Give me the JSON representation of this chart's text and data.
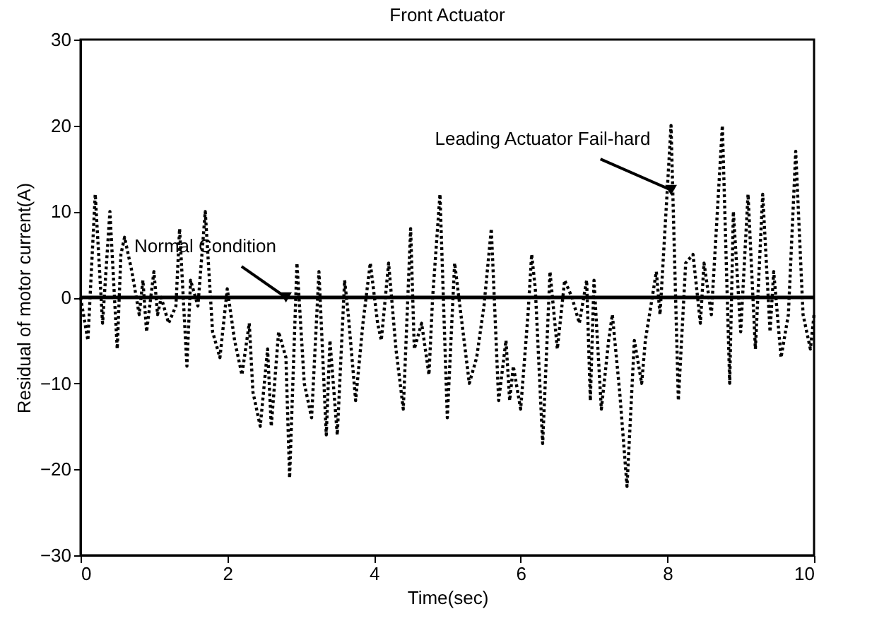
{
  "chart_data": {
    "type": "line",
    "title": "Front Actuator",
    "xlabel": "Time(sec)",
    "ylabel": "Residual of motor current(A)",
    "xlim": [
      0,
      10
    ],
    "ylim": [
      -30,
      30
    ],
    "xticks": [
      0,
      2,
      4,
      6,
      8,
      10
    ],
    "yticks": [
      -30,
      -20,
      -10,
      0,
      10,
      20,
      30
    ],
    "grid": false,
    "series": [
      {
        "x": [
          0,
          0.1,
          0.2,
          0.3,
          0.4,
          0.5,
          0.55,
          0.6,
          0.7,
          0.8,
          0.85,
          0.9,
          1.0,
          1.05,
          1.1,
          1.2,
          1.3,
          1.35,
          1.45,
          1.5,
          1.6,
          1.7,
          1.8,
          1.9,
          2.0,
          2.1,
          2.2,
          2.3,
          2.35,
          2.45,
          2.55,
          2.6,
          2.7,
          2.8,
          2.85,
          2.95,
          3.05,
          3.15,
          3.25,
          3.35,
          3.4,
          3.5,
          3.6,
          3.65,
          3.75,
          3.85,
          3.95,
          4.05,
          4.1,
          4.2,
          4.3,
          4.4,
          4.5,
          4.55,
          4.65,
          4.75,
          4.8,
          4.9,
          5.0,
          5.1,
          5.2,
          5.3,
          5.4,
          5.5,
          5.6,
          5.7,
          5.8,
          5.85,
          5.9,
          6.0,
          6.1,
          6.15,
          6.2,
          6.3,
          6.4,
          6.5,
          6.6,
          6.7,
          6.8,
          6.9,
          6.95,
          7.0,
          7.1,
          7.2,
          7.25,
          7.35,
          7.45,
          7.55,
          7.65,
          7.7,
          7.85,
          7.9,
          8.05,
          8.15,
          8.25,
          8.35,
          8.45,
          8.5,
          8.6,
          8.75,
          8.85,
          8.9,
          9.0,
          9.1,
          9.2,
          9.3,
          9.4,
          9.45,
          9.55,
          9.65,
          9.75,
          9.85,
          9.95,
          10
        ],
        "values": [
          0,
          -5,
          12,
          -3,
          10,
          -6,
          5,
          7,
          3,
          -2,
          2,
          -4,
          3,
          -2,
          0,
          -3,
          -1,
          8,
          -8,
          2,
          -1,
          10,
          -4,
          -7,
          1,
          -5,
          -9,
          -3,
          -11,
          -15,
          -6,
          -15,
          -4,
          -7,
          -21,
          4,
          -10,
          -14,
          3,
          -16,
          -5,
          -16,
          2,
          -2,
          -12,
          -3,
          4,
          -3,
          -5,
          4,
          -6,
          -13,
          8,
          -6,
          -3,
          -9,
          0,
          12,
          -14,
          4,
          -3,
          -10,
          -7,
          -1,
          8,
          -12,
          -5,
          -12,
          -8,
          -13,
          -2,
          5,
          1,
          -17,
          3,
          -6,
          2,
          0,
          -3,
          2,
          -12,
          2,
          -13,
          -5,
          -2,
          -11,
          -22,
          -5,
          -10,
          -5,
          3,
          -2,
          20,
          -12,
          4,
          5,
          -3,
          4,
          -2,
          20,
          -10,
          10,
          -4,
          12,
          -6,
          12,
          -4,
          3,
          -7,
          -2,
          17,
          -2,
          -6,
          -2
        ],
        "color": "#000000",
        "line_style": "dotted"
      },
      {
        "x": [
          0,
          10
        ],
        "values": [
          0,
          0
        ],
        "color": "#000000",
        "line_style": "solid"
      }
    ],
    "annotations": [
      {
        "text": "Normal Condition",
        "x": 2.8,
        "y": 0
      },
      {
        "text": "Leading Actuator Fail-hard",
        "x": 8.05,
        "y": 12.5
      }
    ]
  }
}
